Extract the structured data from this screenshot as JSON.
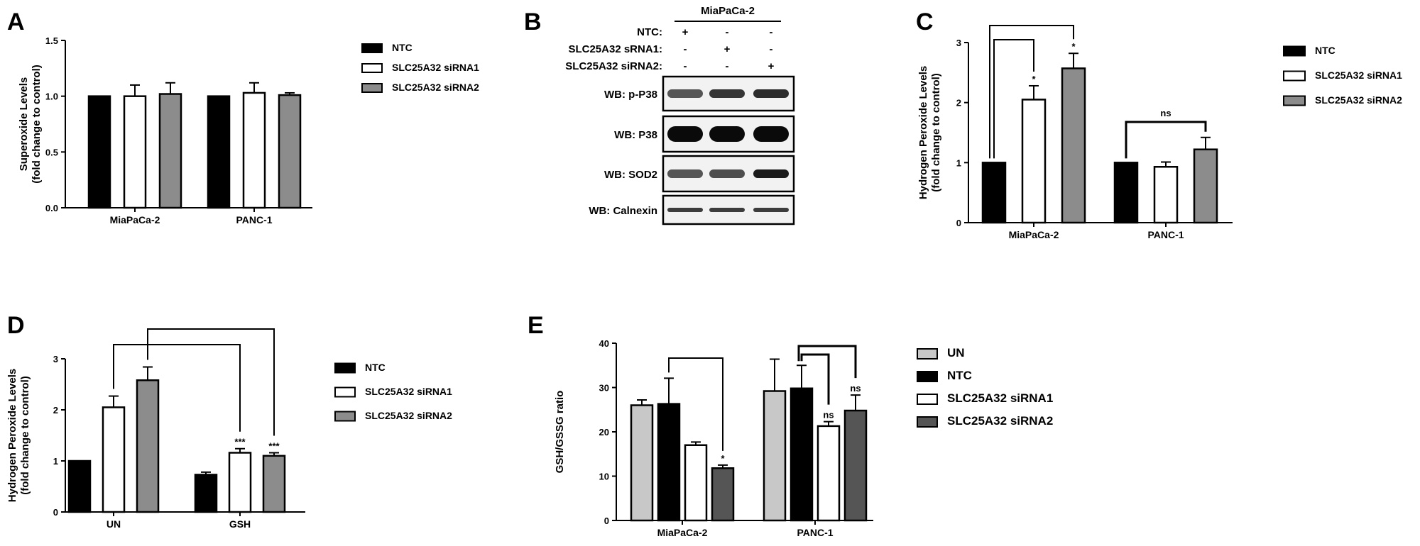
{
  "colors": {
    "NTC": "#000000",
    "siRNA1": "#ffffff",
    "siRNA2": "#8c8c8c",
    "UN": "#c8c8c8",
    "siRNA2_E": "#555555"
  },
  "chart_data": [
    {
      "id": "A",
      "letter": "A",
      "type": "bar",
      "ylabel_lines": [
        "Superoxide Levels",
        "(fold change to control)"
      ],
      "categories": [
        "MiaPaCa-2",
        "PANC-1"
      ],
      "ylim": [
        0,
        1.5
      ],
      "yticks": [
        "0.0",
        "0.5",
        "1.0",
        "1.5"
      ],
      "ytick_values": [
        0,
        0.5,
        1.0,
        1.5
      ],
      "series": [
        {
          "name": "NTC",
          "color_key": "NTC",
          "values": [
            1.0,
            1.0
          ],
          "errors": [
            0,
            0
          ]
        },
        {
          "name": "SLC25A32 siRNA1",
          "color_key": "siRNA1",
          "values": [
            1.0,
            1.03
          ],
          "errors": [
            0.1,
            0.09
          ]
        },
        {
          "name": "SLC25A32 siRNA2",
          "color_key": "siRNA2",
          "values": [
            1.02,
            1.01
          ],
          "errors": [
            0.1,
            0.02
          ]
        }
      ],
      "legend": "right"
    },
    {
      "id": "C",
      "letter": "C",
      "type": "bar",
      "ylabel_lines": [
        "Hydrogen Peroxide Levels",
        "(fold change to control)"
      ],
      "categories": [
        "MiaPaCa-2",
        "PANC-1"
      ],
      "ylim": [
        0,
        3
      ],
      "yticks": [
        "0",
        "1",
        "2",
        "3"
      ],
      "ytick_values": [
        0,
        1,
        2,
        3
      ],
      "series": [
        {
          "name": "NTC",
          "color_key": "NTC",
          "values": [
            1.0,
            1.0
          ],
          "errors": [
            0,
            0
          ]
        },
        {
          "name": "SLC25A32 siRNA1",
          "color_key": "siRNA1",
          "values": [
            2.05,
            0.93
          ],
          "errors": [
            0.23,
            0.08
          ]
        },
        {
          "name": "SLC25A32 siRNA2",
          "color_key": "siRNA2",
          "values": [
            2.57,
            1.22
          ],
          "errors": [
            0.25,
            0.2
          ]
        }
      ],
      "annotations": [
        {
          "category": 0,
          "series": 1,
          "text": "*"
        },
        {
          "category": 0,
          "series": 2,
          "text": "*"
        },
        {
          "category": 1,
          "series": -1,
          "text": "ns"
        }
      ],
      "legend": "right"
    },
    {
      "id": "D",
      "letter": "D",
      "type": "bar",
      "ylabel_lines": [
        "Hydrogen Peroxide Levels",
        "(fold change to control)"
      ],
      "categories": [
        "UN",
        "GSH"
      ],
      "ylim": [
        0,
        3
      ],
      "yticks": [
        "0",
        "1",
        "2",
        "3"
      ],
      "ytick_values": [
        0,
        1,
        2,
        3
      ],
      "series": [
        {
          "name": "NTC",
          "color_key": "NTC",
          "values": [
            1.0,
            0.73
          ],
          "errors": [
            0,
            0.05
          ]
        },
        {
          "name": "SLC25A32 siRNA1",
          "color_key": "siRNA1",
          "values": [
            2.05,
            1.16
          ],
          "errors": [
            0.22,
            0.08
          ]
        },
        {
          "name": "SLC25A32 siRNA2",
          "color_key": "siRNA2",
          "values": [
            2.58,
            1.1
          ],
          "errors": [
            0.26,
            0.06
          ]
        }
      ],
      "annotations": [
        {
          "category": 1,
          "series": 1,
          "text": "***"
        },
        {
          "category": 1,
          "series": 2,
          "text": "***"
        }
      ],
      "legend": "right"
    },
    {
      "id": "E",
      "letter": "E",
      "type": "bar",
      "ylabel_lines": [
        "GSH/GSSG ratio"
      ],
      "categories": [
        "MiaPaCa-2",
        "PANC-1"
      ],
      "ylim": [
        0,
        40
      ],
      "yticks": [
        "0",
        "10",
        "20",
        "30",
        "40"
      ],
      "ytick_values": [
        0,
        10,
        20,
        30,
        40
      ],
      "series": [
        {
          "name": "UN",
          "color_key": "UN",
          "values": [
            26,
            29.2
          ],
          "errors": [
            1.2,
            7.2
          ]
        },
        {
          "name": "NTC",
          "color_key": "NTC",
          "values": [
            26.3,
            29.8
          ],
          "errors": [
            5.8,
            5.2
          ]
        },
        {
          "name": "SLC25A32 siRNA1",
          "color_key": "siRNA1",
          "values": [
            17,
            21.3
          ],
          "errors": [
            0.7,
            1.0
          ]
        },
        {
          "name": "SLC25A32 siRNA2",
          "color_key": "siRNA2_E",
          "values": [
            11.8,
            24.8
          ],
          "errors": [
            0.7,
            3.5
          ]
        }
      ],
      "annotations": [
        {
          "category": 0,
          "series": 3,
          "text": "*"
        },
        {
          "category": 1,
          "series": 2,
          "text": "ns"
        },
        {
          "category": 1,
          "series": 3,
          "text": "ns"
        }
      ],
      "legend": "right"
    }
  ],
  "western_blot": {
    "letter": "B",
    "cell_line": "MiaPaCa-2",
    "conditions": [
      {
        "label": "NTC:",
        "marks": [
          "+",
          "-",
          "-"
        ]
      },
      {
        "label": "SLC25A32 sRNA1:",
        "marks": [
          "-",
          "+",
          "-"
        ]
      },
      {
        "label": "SLC25A32 siRNA2:",
        "marks": [
          "-",
          "-",
          "+"
        ]
      }
    ],
    "blots": [
      {
        "label": "WB: p-P38",
        "intensity": [
          0.55,
          0.75,
          0.8
        ]
      },
      {
        "label": "WB: P38",
        "intensity": [
          1.0,
          1.0,
          1.0
        ]
      },
      {
        "label": "WB: SOD2",
        "intensity": [
          0.55,
          0.6,
          0.9
        ]
      },
      {
        "label": "WB: Calnexin",
        "intensity": [
          0.7,
          0.7,
          0.7
        ]
      }
    ]
  }
}
